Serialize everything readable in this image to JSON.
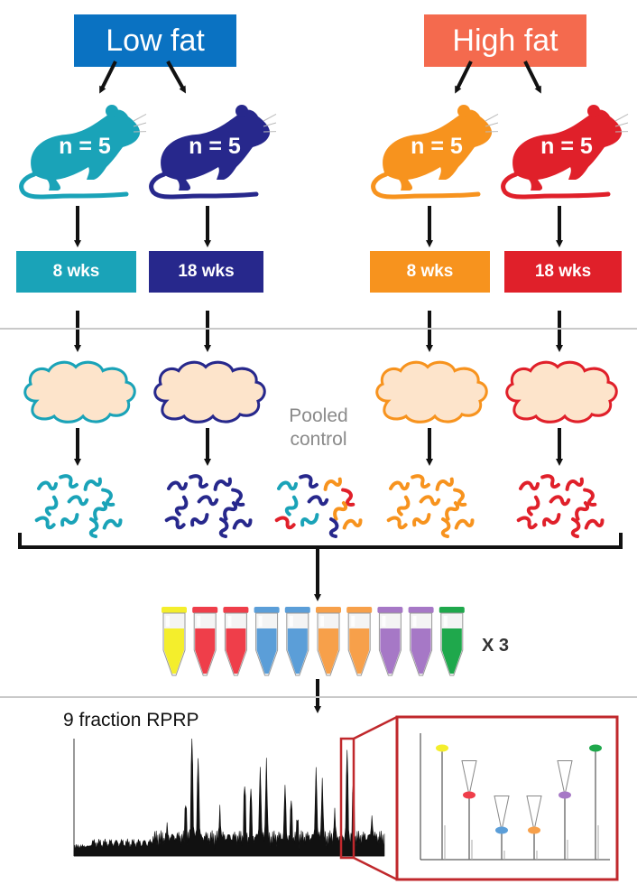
{
  "headers": {
    "low_fat": "Low fat",
    "high_fat": "High fat"
  },
  "groups": [
    {
      "n_label": "n = 5",
      "duration": "8 wks",
      "color": "#1aa3b8"
    },
    {
      "n_label": "n = 5",
      "duration": "18 wks",
      "color": "#27288c"
    },
    {
      "n_label": "n = 5",
      "duration": "8 wks",
      "color": "#f7931e"
    },
    {
      "n_label": "n = 5",
      "duration": "18 wks",
      "color": "#e0202a"
    }
  ],
  "colors": {
    "low_fat": "#0a72c2",
    "high_fat": "#f46a4e",
    "tissue_fill": "#fde4cb",
    "pooled_text": "#8a8a8a",
    "inset_border": "#c0282c"
  },
  "pooled_control": {
    "line1": "Pooled",
    "line2": "control"
  },
  "tubes": {
    "colors": [
      "#f4ee2c",
      "#ef3e4a",
      "#ef3e4a",
      "#5b9ed8",
      "#5b9ed8",
      "#f7a04a",
      "#f7a04a",
      "#a678c6",
      "#a678c6",
      "#1fa84c"
    ],
    "replicates": "X 3"
  },
  "fractionation": {
    "label": "9 fraction RPRP"
  }
}
